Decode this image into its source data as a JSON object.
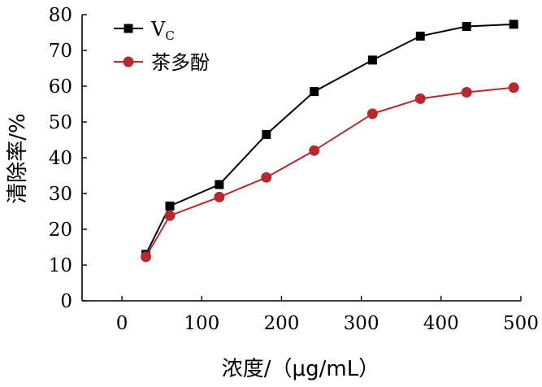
{
  "chart_data": {
    "type": "line",
    "xlabel": "浓度/（μg/mL）",
    "ylabel": "清除率/%",
    "xlim": [
      -50,
      500
    ],
    "ylim": [
      0,
      80
    ],
    "x_ticks": [
      "0",
      "100",
      "200",
      "300",
      "400",
      "500"
    ],
    "y_ticks": [
      "0",
      "10",
      "20",
      "30",
      "40",
      "50",
      "60",
      "70",
      "80"
    ],
    "legend_position": "top-left",
    "grid": false,
    "series": [
      {
        "name": "V",
        "name_subscript": "C",
        "marker": "square",
        "color": "#000000",
        "points": [
          {
            "x": 30,
            "y": 13.0
          },
          {
            "x": 60,
            "y": 26.5
          },
          {
            "x": 122,
            "y": 32.5
          },
          {
            "x": 181,
            "y": 46.5
          },
          {
            "x": 241,
            "y": 58.5
          },
          {
            "x": 314,
            "y": 67.3
          },
          {
            "x": 374,
            "y": 74.0
          },
          {
            "x": 432,
            "y": 76.7
          },
          {
            "x": 491,
            "y": 77.3
          }
        ]
      },
      {
        "name": "茶多酚",
        "name_subscript": "",
        "marker": "circle",
        "color": "#b5292f",
        "points": [
          {
            "x": 30,
            "y": 12.3
          },
          {
            "x": 60,
            "y": 23.8
          },
          {
            "x": 122,
            "y": 29.0
          },
          {
            "x": 181,
            "y": 34.5
          },
          {
            "x": 241,
            "y": 42.0
          },
          {
            "x": 314,
            "y": 52.3
          },
          {
            "x": 374,
            "y": 56.5
          },
          {
            "x": 432,
            "y": 58.3
          },
          {
            "x": 491,
            "y": 59.6
          }
        ]
      }
    ]
  }
}
